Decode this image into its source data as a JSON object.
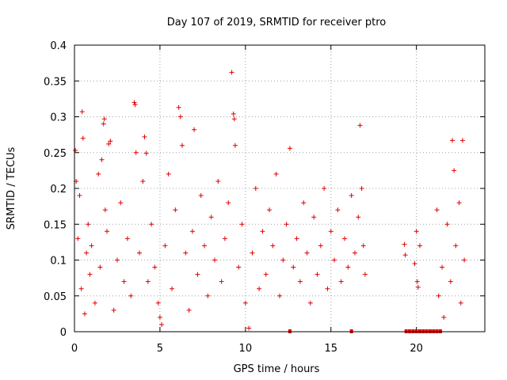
{
  "chart_data": {
    "type": "scatter",
    "title": "Day 107 of 2019, SRMTID for receiver ptro",
    "xlabel": "GPS time / hours",
    "ylabel": "SRMTID / TECUs",
    "xlim": [
      0,
      24
    ],
    "ylim": [
      0,
      0.4
    ],
    "xticks": [
      0,
      5,
      10,
      15,
      20
    ],
    "yticks": [
      0,
      0.05,
      0.1,
      0.15,
      0.2,
      0.25,
      0.3,
      0.35,
      0.4
    ],
    "ytick_labels": [
      "0",
      "0.05",
      "0.1",
      "0.15",
      "0.2",
      "0.25",
      "0.3",
      "0.35",
      "0.4"
    ],
    "grid": true,
    "marker": "+",
    "color": "#e00000",
    "series": [
      {
        "name": "SRMTID",
        "points": [
          [
            0.05,
            0.253
          ],
          [
            0.1,
            0.21
          ],
          [
            0.2,
            0.13
          ],
          [
            0.3,
            0.19
          ],
          [
            0.4,
            0.06
          ],
          [
            0.45,
            0.307
          ],
          [
            0.5,
            0.27
          ],
          [
            0.6,
            0.025
          ],
          [
            0.7,
            0.11
          ],
          [
            0.8,
            0.15
          ],
          [
            0.9,
            0.08
          ],
          [
            1.0,
            0.12
          ],
          [
            1.2,
            0.04
          ],
          [
            1.4,
            0.22
          ],
          [
            1.5,
            0.09
          ],
          [
            1.6,
            0.24
          ],
          [
            1.7,
            0.29
          ],
          [
            1.75,
            0.297
          ],
          [
            1.8,
            0.17
          ],
          [
            1.9,
            0.14
          ],
          [
            2.0,
            0.262
          ],
          [
            2.1,
            0.266
          ],
          [
            2.3,
            0.03
          ],
          [
            2.5,
            0.1
          ],
          [
            2.7,
            0.18
          ],
          [
            2.9,
            0.07
          ],
          [
            3.1,
            0.13
          ],
          [
            3.3,
            0.05
          ],
          [
            3.5,
            0.32
          ],
          [
            3.55,
            0.317
          ],
          [
            3.6,
            0.25
          ],
          [
            3.8,
            0.11
          ],
          [
            4.0,
            0.21
          ],
          [
            4.1,
            0.272
          ],
          [
            4.2,
            0.249
          ],
          [
            4.3,
            0.07
          ],
          [
            4.5,
            0.15
          ],
          [
            4.7,
            0.09
          ],
          [
            4.9,
            0.04
          ],
          [
            5.0,
            0.02
          ],
          [
            5.1,
            0.01
          ],
          [
            5.3,
            0.12
          ],
          [
            5.5,
            0.22
          ],
          [
            5.7,
            0.06
          ],
          [
            5.9,
            0.17
          ],
          [
            6.1,
            0.313
          ],
          [
            6.2,
            0.3
          ],
          [
            6.3,
            0.26
          ],
          [
            6.5,
            0.11
          ],
          [
            6.7,
            0.03
          ],
          [
            6.9,
            0.14
          ],
          [
            7.0,
            0.282
          ],
          [
            7.2,
            0.08
          ],
          [
            7.4,
            0.19
          ],
          [
            7.6,
            0.12
          ],
          [
            7.8,
            0.05
          ],
          [
            8.0,
            0.16
          ],
          [
            8.2,
            0.1
          ],
          [
            8.4,
            0.21
          ],
          [
            8.6,
            0.07
          ],
          [
            8.8,
            0.13
          ],
          [
            9.0,
            0.18
          ],
          [
            9.2,
            0.362
          ],
          [
            9.3,
            0.304
          ],
          [
            9.35,
            0.297
          ],
          [
            9.4,
            0.26
          ],
          [
            9.6,
            0.09
          ],
          [
            9.8,
            0.15
          ],
          [
            10.0,
            0.04
          ],
          [
            10.2,
            0.005
          ],
          [
            10.4,
            0.11
          ],
          [
            10.6,
            0.2
          ],
          [
            10.8,
            0.06
          ],
          [
            11.0,
            0.14
          ],
          [
            11.2,
            0.08
          ],
          [
            11.4,
            0.17
          ],
          [
            11.6,
            0.12
          ],
          [
            11.8,
            0.22
          ],
          [
            12.0,
            0.05
          ],
          [
            12.2,
            0.1
          ],
          [
            12.4,
            0.15
          ],
          [
            12.6,
            0.256
          ],
          [
            12.8,
            0.09
          ],
          [
            13.0,
            0.13
          ],
          [
            13.2,
            0.07
          ],
          [
            13.4,
            0.18
          ],
          [
            13.6,
            0.11
          ],
          [
            13.8,
            0.04
          ],
          [
            14.0,
            0.16
          ],
          [
            14.2,
            0.08
          ],
          [
            14.4,
            0.12
          ],
          [
            14.6,
            0.2
          ],
          [
            14.8,
            0.06
          ],
          [
            15.0,
            0.14
          ],
          [
            15.2,
            0.1
          ],
          [
            15.4,
            0.17
          ],
          [
            15.6,
            0.07
          ],
          [
            15.8,
            0.13
          ],
          [
            16.0,
            0.09
          ],
          [
            16.2,
            0.19
          ],
          [
            16.4,
            0.11
          ],
          [
            16.6,
            0.16
          ],
          [
            16.7,
            0.288
          ],
          [
            16.8,
            0.2
          ],
          [
            16.9,
            0.12
          ],
          [
            17.0,
            0.08
          ],
          [
            19.3,
            0.122
          ],
          [
            19.35,
            0.107
          ],
          [
            19.9,
            0.095
          ],
          [
            20.0,
            0.14
          ],
          [
            20.05,
            0.07
          ],
          [
            20.1,
            0.062
          ],
          [
            20.2,
            0.12
          ],
          [
            21.2,
            0.17
          ],
          [
            21.3,
            0.05
          ],
          [
            21.5,
            0.09
          ],
          [
            21.6,
            0.02
          ],
          [
            21.8,
            0.15
          ],
          [
            22.0,
            0.07
          ],
          [
            22.1,
            0.267
          ],
          [
            22.2,
            0.225
          ],
          [
            22.3,
            0.12
          ],
          [
            22.5,
            0.18
          ],
          [
            22.6,
            0.04
          ],
          [
            22.7,
            0.267
          ],
          [
            22.8,
            0.1
          ]
        ]
      }
    ],
    "zero_markers": [
      12.6,
      16.2,
      19.4,
      19.6,
      19.8,
      20.0,
      20.2,
      20.4,
      20.6,
      20.8,
      21.0,
      21.2,
      21.4
    ]
  }
}
